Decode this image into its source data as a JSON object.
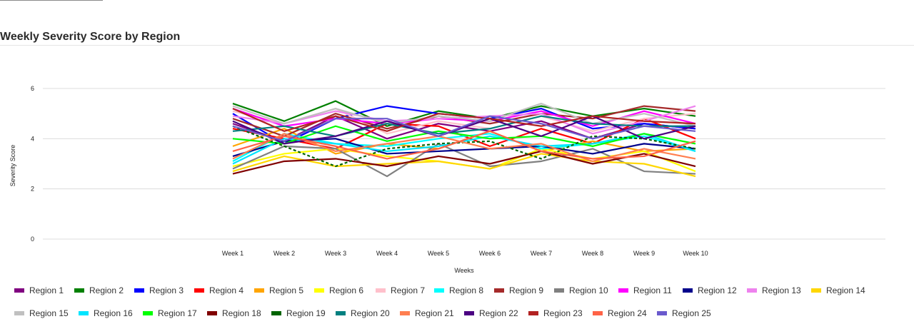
{
  "chart_data": {
    "type": "line",
    "title": "Weekly Severity Score by Region",
    "xlabel": "Weeks",
    "ylabel": "Severity Score",
    "ylim": [
      0,
      7
    ],
    "yticks": [
      0,
      2,
      4,
      6
    ],
    "grid": true,
    "legend_position": "bottom",
    "categories": [
      "Week 1",
      "Week 2",
      "Week 3",
      "Week 4",
      "Week 5",
      "Week 6",
      "Week 7",
      "Week 8",
      "Week 9",
      "Week 10"
    ],
    "series": [
      {
        "name": "Region 1",
        "color": "#800080",
        "values": [
          4.6,
          3.9,
          4.9,
          4.0,
          4.6,
          4.3,
          4.7,
          4.0,
          4.6,
          4.4
        ]
      },
      {
        "name": "Region 2",
        "color": "#008000",
        "values": [
          5.4,
          4.7,
          5.5,
          4.5,
          5.1,
          4.8,
          5.3,
          4.9,
          5.2,
          4.9
        ]
      },
      {
        "name": "Region 3",
        "color": "#0000ff",
        "values": [
          5.0,
          3.8,
          4.8,
          5.3,
          5.0,
          4.8,
          5.2,
          4.4,
          4.6,
          4.4
        ]
      },
      {
        "name": "Region 4",
        "color": "#ff0000",
        "values": [
          4.4,
          4.0,
          3.6,
          4.6,
          4.5,
          3.7,
          4.4,
          3.8,
          4.8,
          4.0
        ]
      },
      {
        "name": "Region 5",
        "color": "#ffa500",
        "values": [
          3.7,
          4.4,
          3.4,
          3.8,
          3.6,
          4.3,
          3.5,
          3.9,
          3.5,
          3.6
        ]
      },
      {
        "name": "Region 6",
        "color": "#ffff00",
        "values": [
          2.9,
          3.4,
          3.6,
          3.3,
          3.1,
          2.8,
          3.6,
          3.2,
          3.5,
          2.7
        ]
      },
      {
        "name": "Region 7",
        "color": "#ffc0cb",
        "values": [
          5.1,
          4.6,
          5.2,
          4.2,
          4.7,
          4.4,
          4.9,
          4.3,
          4.8,
          5.0
        ]
      },
      {
        "name": "Region 8",
        "color": "#00ffff",
        "values": [
          3.1,
          4.2,
          3.8,
          3.7,
          4.0,
          4.2,
          3.6,
          3.8,
          4.1,
          3.5
        ]
      },
      {
        "name": "Region 9",
        "color": "#a52a2a",
        "values": [
          4.8,
          4.1,
          5.0,
          4.4,
          4.9,
          4.6,
          5.0,
          4.8,
          5.3,
          5.1
        ]
      },
      {
        "name": "Region 10",
        "color": "#808080",
        "values": [
          2.8,
          3.7,
          3.6,
          2.5,
          3.8,
          2.9,
          3.1,
          3.6,
          2.7,
          2.6
        ]
      },
      {
        "name": "Region 11",
        "color": "#ff00ff",
        "values": [
          5.2,
          4.5,
          4.8,
          4.6,
          4.8,
          4.7,
          5.1,
          4.5,
          5.1,
          4.6
        ]
      },
      {
        "name": "Region 12",
        "color": "#00008b",
        "values": [
          3.3,
          3.9,
          4.0,
          3.4,
          3.5,
          3.6,
          3.7,
          3.4,
          3.8,
          3.6
        ]
      },
      {
        "name": "Region 13",
        "color": "#ee82ee",
        "values": [
          4.9,
          4.6,
          5.1,
          4.7,
          4.8,
          4.9,
          5.0,
          4.2,
          4.7,
          5.3
        ]
      },
      {
        "name": "Region 14",
        "color": "#ffd700",
        "values": [
          2.7,
          3.3,
          2.9,
          3.0,
          3.1,
          2.8,
          3.4,
          3.1,
          3.0,
          2.5
        ]
      },
      {
        "name": "Region 15",
        "color": "#c0c0c0",
        "values": [
          5.3,
          4.6,
          5.2,
          4.6,
          4.9,
          4.7,
          5.4,
          4.6,
          5.0,
          4.5
        ]
      },
      {
        "name": "Region 16",
        "color": "#00e5ff",
        "values": [
          3.0,
          4.0,
          3.8,
          3.5,
          3.7,
          4.1,
          3.7,
          3.8,
          4.2,
          3.5
        ]
      },
      {
        "name": "Region 17",
        "color": "#00ff00",
        "values": [
          4.0,
          3.8,
          4.5,
          3.9,
          4.3,
          4.0,
          4.1,
          3.7,
          4.2,
          3.8
        ]
      },
      {
        "name": "Region 18",
        "color": "#800000",
        "values": [
          2.6,
          3.1,
          3.2,
          2.9,
          3.3,
          3.0,
          3.5,
          3.0,
          3.4,
          2.9
        ]
      },
      {
        "name": "Region 19",
        "color": "#006400",
        "values": [
          4.5,
          3.7,
          2.9,
          3.6,
          3.8,
          3.9,
          3.2,
          4.1,
          4.0,
          3.6
        ],
        "dashed": true
      },
      {
        "name": "Region 20",
        "color": "#008080",
        "values": [
          4.3,
          4.5,
          4.1,
          4.6,
          4.2,
          4.4,
          4.9,
          4.6,
          4.5,
          4.5
        ]
      },
      {
        "name": "Region 21",
        "color": "#ff7f50",
        "values": [
          3.2,
          4.2,
          3.5,
          3.8,
          4.1,
          3.6,
          3.8,
          3.1,
          3.6,
          3.2
        ]
      },
      {
        "name": "Region 22",
        "color": "#4b0082",
        "values": [
          4.7,
          3.8,
          4.1,
          4.7,
          4.1,
          4.8,
          4.1,
          4.9,
          4.0,
          4.5
        ]
      },
      {
        "name": "Region 23",
        "color": "#b22222",
        "values": [
          5.2,
          4.3,
          4.9,
          4.3,
          5.0,
          4.8,
          4.5,
          4.9,
          4.7,
          4.6
        ]
      },
      {
        "name": "Region 24",
        "color": "#ff6347",
        "values": [
          3.5,
          4.1,
          3.7,
          3.2,
          3.6,
          4.3,
          3.5,
          3.2,
          3.3,
          3.9
        ]
      },
      {
        "name": "Region 25",
        "color": "#6a5acd",
        "values": [
          4.5,
          3.9,
          4.8,
          4.8,
          4.1,
          4.9,
          4.6,
          4.0,
          4.5,
          4.3
        ]
      }
    ]
  }
}
